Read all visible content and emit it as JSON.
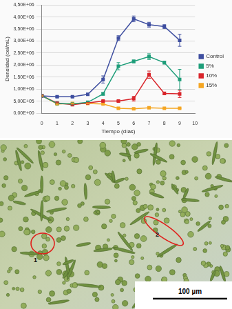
{
  "chart_data": {
    "type": "line",
    "x_label": "Tiempo (días)",
    "y_label": "Densidad (cel/mL)",
    "x": [
      0,
      1,
      2,
      3,
      4,
      5,
      6,
      7,
      8,
      9
    ],
    "xlim": [
      0,
      10
    ],
    "xticks": [
      0,
      1,
      2,
      3,
      4,
      5,
      6,
      7,
      8,
      9,
      10
    ],
    "ylim": [
      0,
      4500000
    ],
    "yticks": [
      {
        "value": 0,
        "label": "0,00E+00"
      },
      {
        "value": 500000,
        "label": "5,00E+05"
      },
      {
        "value": 1000000,
        "label": "1,00E+06"
      },
      {
        "value": 1500000,
        "label": "1,50E+06"
      },
      {
        "value": 2000000,
        "label": "2,00E+06"
      },
      {
        "value": 2500000,
        "label": "2,50E+06"
      },
      {
        "value": 3000000,
        "label": "3,00E+06"
      },
      {
        "value": 3500000,
        "label": "3,50E+06"
      },
      {
        "value": 4000000,
        "label": "4,00E+06"
      },
      {
        "value": 4500000,
        "label": "4,50E+06"
      }
    ],
    "grid": true,
    "legend": "right",
    "series": [
      {
        "name": "Control",
        "color": "#3f4fa0",
        "marker": "square",
        "line_style": "solid",
        "values": [
          720000,
          680000,
          680000,
          780000,
          1400000,
          3120000,
          3920000,
          3680000,
          3600000,
          3030000
        ],
        "errors": [
          30000,
          30000,
          30000,
          40000,
          150000,
          100000,
          120000,
          100000,
          80000,
          250000
        ]
      },
      {
        "name": "5%",
        "color": "#1f9e7a",
        "marker": "square",
        "line_style": "solid",
        "values": [
          720000,
          400000,
          380000,
          450000,
          800000,
          1950000,
          2150000,
          2350000,
          2100000,
          1400000
        ],
        "errors": [
          30000,
          30000,
          30000,
          30000,
          50000,
          150000,
          60000,
          120000,
          60000,
          420000
        ]
      },
      {
        "name": "10%",
        "color": "#d9262c",
        "marker": "square",
        "line_style": "solid",
        "values": [
          720000,
          420000,
          350000,
          420000,
          500000,
          500000,
          600000,
          1600000,
          820000,
          800000
        ],
        "errors": [
          30000,
          30000,
          30000,
          30000,
          30000,
          30000,
          100000,
          150000,
          60000,
          150000
        ]
      },
      {
        "name": "15%",
        "color": "#f5a623",
        "marker": "square",
        "line_style": "solid",
        "values": [
          720000,
          380000,
          400000,
          400000,
          380000,
          200000,
          180000,
          220000,
          200000,
          200000
        ],
        "errors": [
          20000,
          20000,
          20000,
          20000,
          20000,
          20000,
          20000,
          20000,
          20000,
          20000
        ]
      }
    ]
  },
  "micrograph": {
    "annotations": [
      "1",
      "2"
    ],
    "scale_bar": "100 µm"
  }
}
